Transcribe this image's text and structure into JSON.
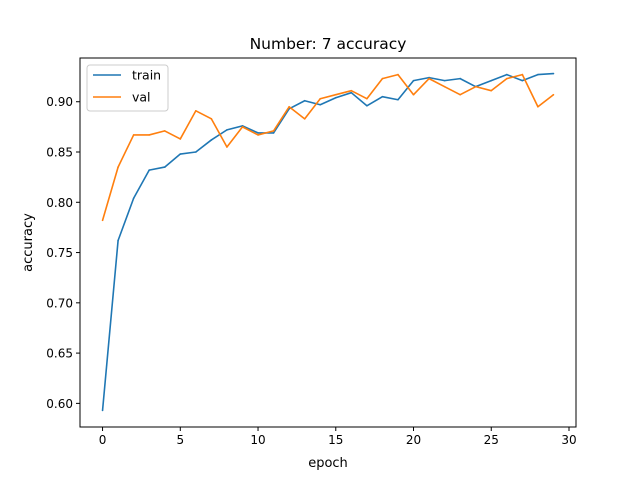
{
  "chart_data": {
    "type": "line",
    "title": "Number: 7 accuracy",
    "xlabel": "epoch",
    "ylabel": "accuracy",
    "xlim": [
      -1.45,
      30.45
    ],
    "ylim": [
      0.5765,
      0.9435
    ],
    "xticks": [
      0,
      5,
      10,
      15,
      20,
      25,
      30
    ],
    "xtick_labels": [
      "0",
      "5",
      "10",
      "15",
      "20",
      "25",
      "30"
    ],
    "yticks": [
      0.6,
      0.65,
      0.7,
      0.75,
      0.8,
      0.85,
      0.9
    ],
    "ytick_labels": [
      "0.60",
      "0.65",
      "0.70",
      "0.75",
      "0.80",
      "0.85",
      "0.90"
    ],
    "grid": false,
    "legend_position": "upper-left",
    "x": [
      0,
      1,
      2,
      3,
      4,
      5,
      6,
      7,
      8,
      9,
      10,
      11,
      12,
      13,
      14,
      15,
      16,
      17,
      18,
      19,
      20,
      21,
      22,
      23,
      24,
      25,
      26,
      27,
      28,
      29
    ],
    "series": [
      {
        "name": "train",
        "color": "#1f77b4",
        "values": [
          0.593,
          0.762,
          0.804,
          0.832,
          0.835,
          0.848,
          0.85,
          0.862,
          0.872,
          0.876,
          0.869,
          0.869,
          0.893,
          0.901,
          0.897,
          0.904,
          0.909,
          0.896,
          0.905,
          0.902,
          0.921,
          0.924,
          0.921,
          0.923,
          0.915,
          0.921,
          0.927,
          0.921,
          0.927,
          0.928
        ]
      },
      {
        "name": "val",
        "color": "#ff7f0e",
        "values": [
          0.782,
          0.835,
          0.867,
          0.867,
          0.871,
          0.863,
          0.891,
          0.883,
          0.855,
          0.875,
          0.867,
          0.871,
          0.895,
          0.883,
          0.903,
          0.907,
          0.911,
          0.903,
          0.923,
          0.927,
          0.907,
          0.923,
          0.915,
          0.907,
          0.915,
          0.911,
          0.923,
          0.927,
          0.895,
          0.907
        ]
      }
    ]
  }
}
